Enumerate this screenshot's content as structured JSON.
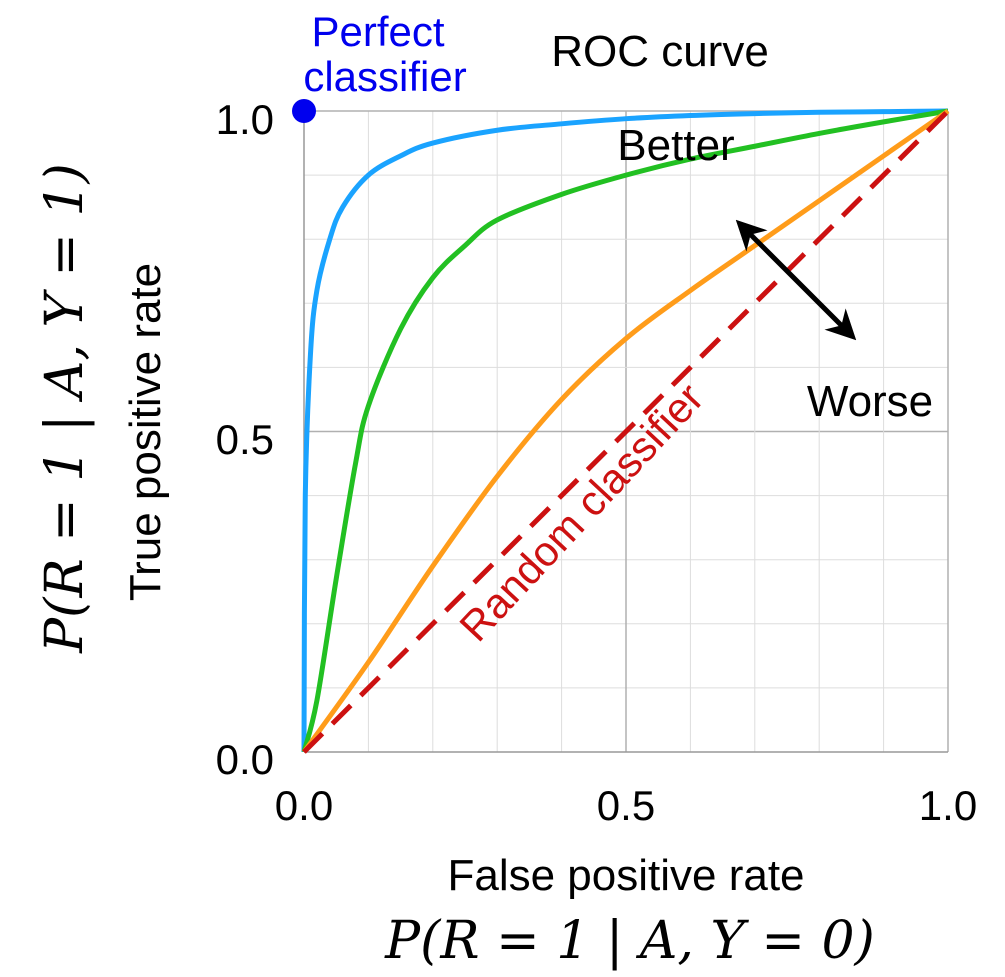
{
  "chart_data": {
    "type": "line",
    "title": "ROC curve",
    "xlabel": "False positive rate",
    "ylabel": "True positive rate",
    "xlabel_formula": "P(R = 1 | A, Y = 0)",
    "ylabel_formula": "P(R = 1 | A, Y = 1)",
    "xlim": [
      0,
      1
    ],
    "ylim": [
      0,
      1
    ],
    "grid": true,
    "x_ticks": [
      "0.0",
      "0.5",
      "1.0"
    ],
    "y_ticks": [
      "0.0",
      "0.5",
      "1.0"
    ],
    "series": [
      {
        "color": "#1aa3ff",
        "x": [
          0,
          0.002,
          0.01,
          0.02,
          0.04,
          0.06,
          0.1,
          0.15,
          0.2,
          0.3,
          0.4,
          0.5,
          0.6,
          0.7,
          0.8,
          0.9,
          1.0
        ],
        "y": [
          0,
          0.4,
          0.62,
          0.72,
          0.8,
          0.85,
          0.9,
          0.93,
          0.95,
          0.97,
          0.98,
          0.988,
          0.993,
          0.996,
          0.998,
          0.999,
          1.0
        ]
      },
      {
        "color": "#22c022",
        "x": [
          0,
          0.02,
          0.05,
          0.08,
          0.1,
          0.15,
          0.2,
          0.25,
          0.3,
          0.4,
          0.5,
          0.6,
          0.7,
          0.8,
          0.9,
          1.0
        ],
        "y": [
          0,
          0.08,
          0.27,
          0.45,
          0.54,
          0.66,
          0.74,
          0.79,
          0.83,
          0.87,
          0.9,
          0.925,
          0.945,
          0.965,
          0.983,
          1.0
        ]
      },
      {
        "color": "#ff9c1a",
        "x": [
          0,
          0.1,
          0.2,
          0.3,
          0.4,
          0.5,
          0.6,
          0.7,
          0.8,
          0.9,
          1.0
        ],
        "y": [
          0,
          0.14,
          0.29,
          0.43,
          0.55,
          0.645,
          0.72,
          0.79,
          0.86,
          0.93,
          1.0
        ]
      },
      {
        "color": "#cc1111",
        "dashed": true,
        "x": [
          0,
          1
        ],
        "y": [
          0,
          1
        ]
      }
    ],
    "annotations": {
      "perfect_classifier": {
        "text": [
          "Perfect",
          "classifier"
        ],
        "x": 0,
        "y": 1,
        "color": "#0000ee"
      },
      "random_classifier": {
        "text": "Random classifier",
        "color": "#cc1111"
      },
      "better": "Better",
      "worse": "Worse"
    }
  }
}
